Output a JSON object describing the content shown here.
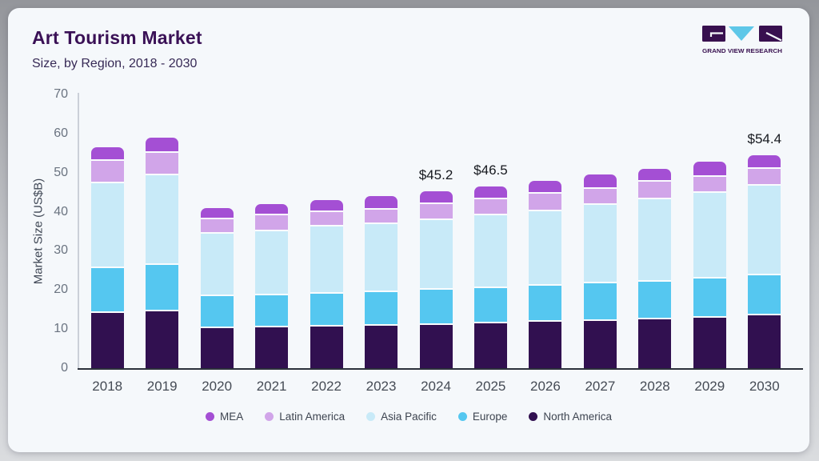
{
  "header": {
    "title": "Art Tourism Market",
    "subtitle": "Size, by Region, 2018 - 2030"
  },
  "logo": {
    "wordmark": "GRAND VIEW RESEARCH"
  },
  "chart_data": {
    "type": "bar",
    "stacked": true,
    "title": "Art Tourism Market Size, by Region, 2018 - 2030",
    "xlabel": "",
    "ylabel": "Market Size (US$B)",
    "ylim": [
      0,
      70
    ],
    "yticks": [
      0,
      10,
      20,
      30,
      40,
      50,
      60,
      70
    ],
    "grid": false,
    "legend_position": "bottom",
    "categories": [
      "2018",
      "2019",
      "2020",
      "2021",
      "2022",
      "2023",
      "2024",
      "2025",
      "2026",
      "2027",
      "2028",
      "2029",
      "2030"
    ],
    "series": [
      {
        "name": "North America",
        "color": "#311050",
        "values": [
          14.5,
          15.0,
          10.6,
          10.8,
          11.0,
          11.3,
          11.5,
          11.9,
          12.3,
          12.4,
          13.0,
          13.4,
          13.9
        ]
      },
      {
        "name": "Europe",
        "color": "#55c7f0",
        "values": [
          11.5,
          11.9,
          8.2,
          8.3,
          8.5,
          8.6,
          9.0,
          9.0,
          9.2,
          9.8,
          9.6,
          9.9,
          10.3
        ]
      },
      {
        "name": "Asia Pacific",
        "color": "#c8eaf8",
        "values": [
          21.8,
          22.8,
          16.0,
          16.4,
          17.1,
          17.3,
          17.8,
          18.7,
          19.1,
          20.0,
          21.1,
          21.9,
          22.9
        ]
      },
      {
        "name": "Latin America",
        "color": "#d1a5e9",
        "values": [
          5.6,
          5.7,
          3.7,
          4.1,
          3.8,
          3.7,
          4.0,
          4.1,
          4.4,
          4.1,
          4.4,
          4.1,
          4.2
        ]
      },
      {
        "name": "MEA",
        "color": "#a44fd4",
        "values": [
          3.1,
          3.5,
          2.5,
          2.3,
          2.6,
          3.1,
          2.9,
          2.8,
          2.9,
          3.2,
          2.9,
          3.6,
          3.1
        ]
      }
    ],
    "totals": [
      56.5,
      58.9,
      41.0,
      41.9,
      43.0,
      44.0,
      45.2,
      46.5,
      47.9,
      49.5,
      51.0,
      52.9,
      54.4
    ],
    "annotations": [
      {
        "category": "2024",
        "label": "$45.2"
      },
      {
        "category": "2025",
        "label": "$46.5"
      },
      {
        "category": "2030",
        "label": "$54.4"
      }
    ],
    "legend": [
      "MEA",
      "Latin America",
      "Asia Pacific",
      "Europe",
      "North America"
    ]
  },
  "colors": {
    "card_bg": "#f5f8fb",
    "title": "#3a1156",
    "axis_line": "#2c313b",
    "logo_purple": "#38104f",
    "logo_blue": "#5ec7e8"
  }
}
